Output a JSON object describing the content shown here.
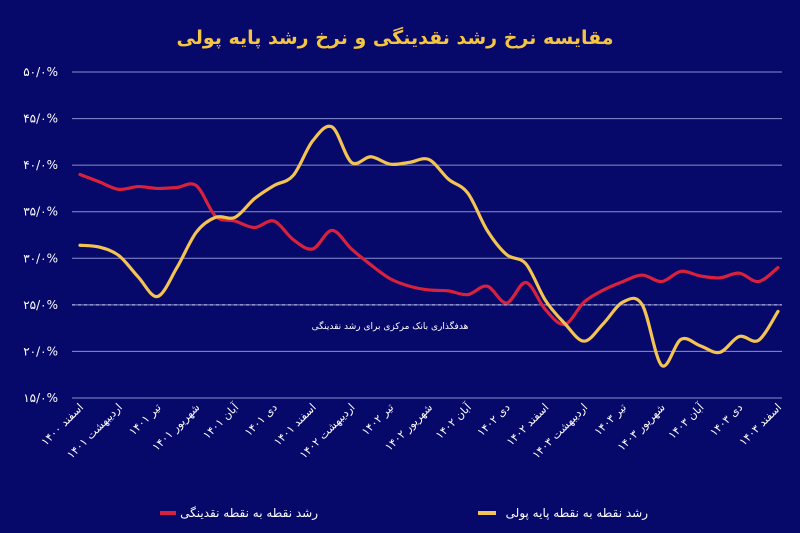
{
  "chart_data": {
    "type": "line",
    "title": "مقایسه نرخ رشد نقدینگی و نرخ رشد پایه پولی",
    "xlabel": "",
    "ylabel": "",
    "ylim": [
      15,
      50
    ],
    "yticks": [
      50,
      45,
      40,
      35,
      30,
      25,
      20,
      15
    ],
    "ytick_labels": [
      "۵۰/۰%",
      "۴۵/۰%",
      "۴۰/۰%",
      "۳۵/۰%",
      "۳۰/۰%",
      "۲۵/۰%",
      "۲۰/۰%",
      "۱۵/۰%"
    ],
    "x_tick_labels": [
      "اسفند ۱۴۰۰",
      "اردیبهشت ۱۴۰۱",
      "تیر ۱۴۰۱",
      "شهریور ۱۴۰۱",
      "آبان ۱۴۰۱",
      "دی ۱۴۰۱",
      "اسفند ۱۴۰۱",
      "اردیبهشت ۱۴۰۲",
      "تیر ۱۴۰۲",
      "شهریور ۱۴۰۲",
      "آبان ۱۴۰۲",
      "دی ۱۴۰۲",
      "اسفند ۱۴۰۲",
      "اردیبهشت ۱۴۰۳",
      "تیر ۱۴۰۳",
      "شهریور ۱۴۰۳",
      "آبان ۱۴۰۳",
      "دی ۱۴۰۳",
      "اسفند ۱۴۰۳"
    ],
    "grid": true,
    "legend_placement": "bottom",
    "reference_line": {
      "value": 25,
      "label": "هدفگذاری بانک مرکزی برای رشد نقدینگی",
      "style": "dashed"
    },
    "series": [
      {
        "name": "رشد نقطه به نقطه نقدینگی",
        "color": "#d8213c",
        "values": [
          39.0,
          38.2,
          37.4,
          37.7,
          37.5,
          37.6,
          37.8,
          34.5,
          34.0,
          33.3,
          34.0,
          32.0,
          31.0,
          33.0,
          31.0,
          29.3,
          27.8,
          27.0,
          26.6,
          26.5,
          26.1,
          27.0,
          25.2,
          27.4,
          24.5,
          22.9,
          25.3,
          26.6,
          27.5,
          28.2,
          27.5,
          28.6,
          28.1,
          27.9,
          28.4,
          27.5,
          29.0
        ]
      },
      {
        "name": "رشد نقطه به نقطه پایه پولی",
        "color": "#f3c453",
        "values": [
          31.4,
          31.2,
          30.3,
          28.0,
          25.9,
          29.0,
          32.8,
          34.4,
          34.4,
          36.4,
          37.8,
          38.9,
          42.6,
          44.1,
          40.3,
          40.9,
          40.1,
          40.3,
          40.6,
          38.5,
          37.0,
          33.0,
          30.4,
          29.4,
          25.5,
          23.0,
          21.1,
          23.0,
          25.3,
          25.0,
          18.5,
          21.3,
          20.6,
          19.9,
          21.6,
          21.2,
          24.3
        ]
      }
    ]
  },
  "colors": {
    "background": "#06086a",
    "title": "#f5c542",
    "grid": "#8a90d0"
  }
}
